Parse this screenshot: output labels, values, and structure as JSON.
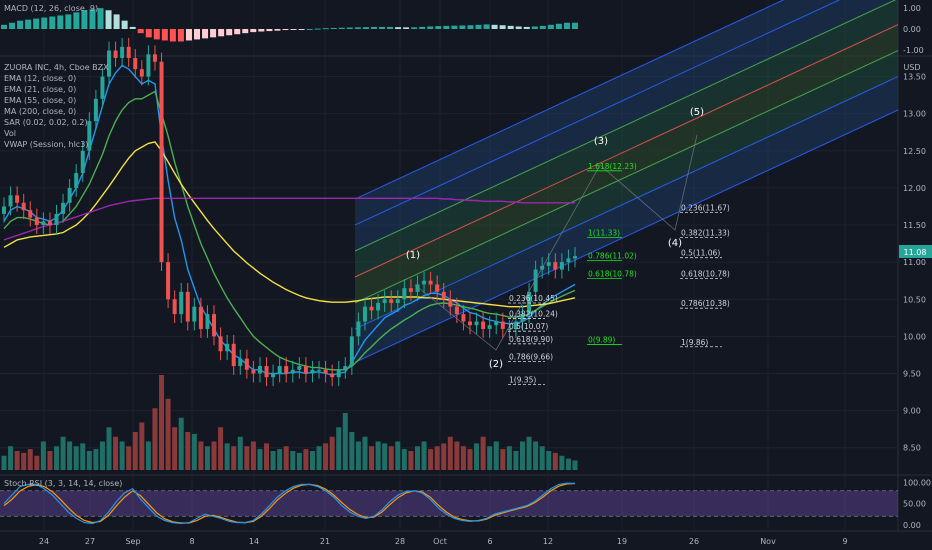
{
  "panels": {
    "macd_label": "MACD (12, 26, close, 9)",
    "stoch_label": "Stoch RSI (3, 3, 14, 14, close)",
    "macd_ticks": [
      "1.00",
      "0.00",
      "-1.00"
    ],
    "stoch_ticks": [
      "100.00",
      "50.00",
      "0.00"
    ]
  },
  "legend": [
    "ZUORA INC, 4h, Cboe BZX",
    "EMA (12, close, 0)",
    "EMA (21, close, 0)",
    "EMA (55, close, 0)",
    "MA (200, close, 0)",
    "SAR (0.02, 0.02, 0.2)",
    "Vol",
    "VWAP (Session, hlc3)"
  ],
  "currency": "USD",
  "price_badge": "11.08",
  "colors": {
    "background": "#131722",
    "up": "#26a69a",
    "down": "#ef5350",
    "ema12": "#2196f3",
    "ema21": "#4caf50",
    "ema55": "#f3e045",
    "ma200": "#9c27b0",
    "fib_green": "#22e022",
    "channel_blue": "#2962ff",
    "stoch_k": "#2196f3",
    "stoch_d": "#ff9800",
    "stoch_band": "#7e57c2"
  },
  "chart_data": {
    "type": "candlestick",
    "title": "ZUORA INC, 4h, Cboe BZX",
    "xlabel": "",
    "ylabel": "USD",
    "x_ticks": [
      "24",
      "27",
      "Sep",
      "8",
      "14",
      "21",
      "28",
      "Oct",
      "6",
      "12",
      "19",
      "26",
      "Nov",
      "9"
    ],
    "y_ticks": [
      8.5,
      9.0,
      9.5,
      10.0,
      10.5,
      11.0,
      11.5,
      12.0,
      12.5,
      13.0,
      13.5
    ],
    "ylim": [
      8.2,
      13.75
    ],
    "last_price": 11.08,
    "close_series": [
      11.75,
      11.9,
      11.8,
      11.7,
      11.6,
      11.5,
      11.55,
      11.5,
      11.65,
      11.8,
      12.0,
      12.2,
      12.5,
      12.9,
      13.2,
      13.5,
      13.85,
      13.75,
      13.9,
      13.75,
      13.6,
      13.5,
      13.8,
      13.7,
      11.0,
      10.5,
      10.3,
      10.6,
      10.2,
      10.4,
      10.1,
      10.3,
      10.0,
      9.8,
      9.9,
      9.6,
      9.7,
      9.55,
      9.5,
      9.6,
      9.45,
      9.5,
      9.6,
      9.5,
      9.55,
      9.6,
      9.5,
      9.55,
      9.55,
      9.5,
      9.45,
      9.55,
      9.6,
      10.0,
      10.2,
      10.4,
      10.35,
      10.45,
      10.5,
      10.45,
      10.5,
      10.65,
      10.6,
      10.7,
      10.75,
      10.7,
      10.6,
      10.5,
      10.4,
      10.3,
      10.2,
      10.15,
      10.2,
      10.1,
      10.15,
      10.2,
      10.1,
      10.1,
      10.2,
      10.3,
      10.6,
      10.9,
      10.95,
      11.0,
      10.9,
      11.0,
      11.05,
      11.08
    ],
    "series": [
      {
        "name": "EMA (12, close, 0)",
        "values": [
          11.55,
          11.7,
          11.75,
          11.72,
          11.68,
          11.6,
          11.58,
          11.55,
          11.6,
          11.7,
          11.85,
          12.0,
          12.2,
          12.5,
          12.8,
          13.1,
          13.4,
          13.55,
          13.65,
          13.6,
          13.5,
          13.4,
          13.45,
          13.4,
          12.7,
          12.1,
          11.6,
          11.3,
          10.9,
          10.65,
          10.4,
          10.25,
          10.1,
          9.95,
          9.85,
          9.75,
          9.7,
          9.62,
          9.55,
          9.55,
          9.5,
          9.5,
          9.5,
          9.5,
          9.52,
          9.52,
          9.5,
          9.52,
          9.52,
          9.5,
          9.48,
          9.5,
          9.52,
          9.65,
          9.8,
          9.95,
          10.05,
          10.15,
          10.25,
          10.3,
          10.35,
          10.42,
          10.45,
          10.5,
          10.55,
          10.58,
          10.58,
          10.55,
          10.5,
          10.45,
          10.38,
          10.32,
          10.3,
          10.25,
          10.22,
          10.2,
          10.18,
          10.17,
          10.18,
          10.2,
          10.25,
          10.35,
          10.42,
          10.5,
          10.55,
          10.6,
          10.65,
          10.7
        ]
      },
      {
        "name": "EMA (21, close, 0)",
        "values": [
          11.45,
          11.55,
          11.6,
          11.6,
          11.58,
          11.55,
          11.52,
          11.5,
          11.52,
          11.55,
          11.65,
          11.75,
          11.9,
          12.05,
          12.25,
          12.45,
          12.7,
          12.9,
          13.05,
          13.15,
          13.2,
          13.2,
          13.25,
          13.3,
          13.0,
          12.7,
          12.35,
          12.05,
          11.75,
          11.5,
          11.25,
          11.05,
          10.85,
          10.68,
          10.52,
          10.38,
          10.25,
          10.12,
          10.0,
          9.92,
          9.85,
          9.78,
          9.72,
          9.68,
          9.65,
          9.62,
          9.6,
          9.58,
          9.58,
          9.56,
          9.55,
          9.55,
          9.55,
          9.6,
          9.68,
          9.78,
          9.86,
          9.95,
          10.03,
          10.1,
          10.16,
          10.22,
          10.27,
          10.33,
          10.38,
          10.42,
          10.44,
          10.45,
          10.44,
          10.42,
          10.4,
          10.38,
          10.36,
          10.33,
          10.31,
          10.3,
          10.28,
          10.26,
          10.26,
          10.27,
          10.3,
          10.35,
          10.4,
          10.45,
          10.5,
          10.54,
          10.58,
          10.62
        ]
      },
      {
        "name": "EMA (55, close, 0)",
        "values": [
          11.2,
          11.25,
          11.3,
          11.32,
          11.34,
          11.35,
          11.36,
          11.37,
          11.38,
          11.4,
          11.45,
          11.5,
          11.58,
          11.67,
          11.78,
          11.9,
          12.02,
          12.15,
          12.28,
          12.4,
          12.5,
          12.55,
          12.6,
          12.62,
          12.5,
          12.35,
          12.2,
          12.05,
          11.92,
          11.8,
          11.68,
          11.56,
          11.45,
          11.35,
          11.25,
          11.15,
          11.07,
          10.99,
          10.92,
          10.85,
          10.79,
          10.73,
          10.68,
          10.63,
          10.59,
          10.55,
          10.52,
          10.5,
          10.48,
          10.47,
          10.46,
          10.46,
          10.46,
          10.47,
          10.48,
          10.5,
          10.51,
          10.52,
          10.53,
          10.53,
          10.53,
          10.53,
          10.53,
          10.53,
          10.52,
          10.52,
          10.51,
          10.5,
          10.49,
          10.48,
          10.47,
          10.46,
          10.45,
          10.44,
          10.43,
          10.42,
          10.41,
          10.4,
          10.4,
          10.4,
          10.41,
          10.42,
          10.43,
          10.44,
          10.46,
          10.48,
          10.5,
          10.52
        ]
      },
      {
        "name": "MA (200, close, 0)",
        "values": [
          11.3,
          11.33,
          11.36,
          11.39,
          11.42,
          11.45,
          11.48,
          11.5,
          11.52,
          11.55,
          11.58,
          11.61,
          11.64,
          11.67,
          11.7,
          11.73,
          11.76,
          11.78,
          11.8,
          11.82,
          11.83,
          11.84,
          11.85,
          11.86,
          11.86,
          11.86,
          11.86,
          11.86,
          11.86,
          11.86,
          11.86,
          11.86,
          11.86,
          11.86,
          11.86,
          11.86,
          11.86,
          11.86,
          11.86,
          11.86,
          11.86,
          11.86,
          11.86,
          11.86,
          11.86,
          11.86,
          11.86,
          11.86,
          11.86,
          11.86,
          11.86,
          11.86,
          11.86,
          11.86,
          11.86,
          11.86,
          11.86,
          11.86,
          11.86,
          11.86,
          11.86,
          11.86,
          11.86,
          11.86,
          11.86,
          11.86,
          11.86,
          11.85,
          11.85,
          11.84,
          11.84,
          11.83,
          11.83,
          11.82,
          11.82,
          11.82,
          11.82,
          11.81,
          11.81,
          11.8,
          11.8,
          11.8,
          11.8,
          11.8,
          11.8,
          11.8,
          11.8,
          11.8
        ]
      }
    ],
    "fib_levels_left": [
      {
        "label": "1.618(12.23)",
        "value": 12.23
      },
      {
        "label": "1(11.33)",
        "value": 11.33
      },
      {
        "label": "0.786(11.02)",
        "value": 11.02
      },
      {
        "label": "0.618(10.78)",
        "value": 10.78
      },
      {
        "label": "0(9.89)",
        "value": 9.89
      }
    ],
    "fib_levels_retrace": [
      {
        "label": "0.236(10.45)",
        "value": 10.45
      },
      {
        "label": "0.382(10.24)",
        "value": 10.24
      },
      {
        "label": "0.5(10.07)",
        "value": 10.07
      },
      {
        "label": "0.618(9.90)",
        "value": 9.9
      },
      {
        "label": "0.786(9.66)",
        "value": 9.66
      },
      {
        "label": "1(9.35)",
        "value": 9.35
      }
    ],
    "fib_levels_right": [
      {
        "label": "0.236(11.67)",
        "value": 11.67
      },
      {
        "label": "0.382(11.33)",
        "value": 11.33
      },
      {
        "label": "0.5(11.06)",
        "value": 11.06
      },
      {
        "label": "0.618(10.78)",
        "value": 10.78
      },
      {
        "label": "0.786(10.38)",
        "value": 10.38
      },
      {
        "label": "1(9.86)",
        "value": 9.86
      }
    ],
    "wave_labels": [
      "(1)",
      "(2)",
      "(3)",
      "(4)",
      "(5)"
    ],
    "stoch_rsi": {
      "ylim": [
        -10,
        110
      ],
      "upper": 80,
      "lower": 20,
      "k": [
        50,
        70,
        90,
        95,
        95,
        85,
        70,
        50,
        30,
        15,
        5,
        3,
        10,
        30,
        55,
        75,
        85,
        60,
        40,
        20,
        10,
        5,
        3,
        5,
        15,
        25,
        20,
        15,
        8,
        5,
        5,
        10,
        25,
        45,
        65,
        80,
        90,
        95,
        95,
        90,
        80,
        65,
        45,
        30,
        20,
        15,
        20,
        35,
        55,
        70,
        78,
        80,
        75,
        60,
        40,
        25,
        15,
        10,
        8,
        10,
        15,
        25,
        30,
        35,
        40,
        45,
        55,
        70,
        85,
        95,
        98,
        97
      ],
      "d": [
        45,
        60,
        80,
        90,
        95,
        90,
        78,
        60,
        40,
        22,
        10,
        5,
        8,
        22,
        45,
        65,
        80,
        68,
        48,
        28,
        14,
        7,
        4,
        4,
        10,
        20,
        22,
        17,
        11,
        6,
        5,
        8,
        20,
        38,
        58,
        74,
        86,
        93,
        95,
        92,
        84,
        70,
        52,
        36,
        24,
        17,
        18,
        30,
        48,
        64,
        75,
        80,
        77,
        65,
        46,
        30,
        18,
        12,
        9,
        9,
        13,
        22,
        28,
        33,
        38,
        43,
        52,
        65,
        80,
        91,
        96,
        97
      ]
    },
    "volume": [
      0.15,
      0.25,
      0.2,
      0.18,
      0.22,
      0.15,
      0.3,
      0.2,
      0.25,
      0.35,
      0.3,
      0.25,
      0.28,
      0.2,
      0.22,
      0.3,
      0.45,
      0.35,
      0.3,
      0.25,
      0.4,
      0.5,
      0.3,
      0.65,
      1.0,
      0.75,
      0.45,
      0.55,
      0.4,
      0.38,
      0.3,
      0.25,
      0.3,
      0.45,
      0.28,
      0.25,
      0.35,
      0.25,
      0.3,
      0.22,
      0.28,
      0.2,
      0.22,
      0.25,
      0.2,
      0.18,
      0.22,
      0.2,
      0.25,
      0.28,
      0.35,
      0.45,
      0.6,
      0.4,
      0.3,
      0.35,
      0.25,
      0.3,
      0.28,
      0.25,
      0.3,
      0.22,
      0.2,
      0.25,
      0.3,
      0.22,
      0.25,
      0.28,
      0.35,
      0.3,
      0.25,
      0.22,
      0.28,
      0.35,
      0.25,
      0.3,
      0.22,
      0.25,
      0.2,
      0.3,
      0.35,
      0.3,
      0.25,
      0.2,
      0.18,
      0.15,
      0.12,
      0.1
    ],
    "macd_hist": [
      0.2,
      0.3,
      0.4,
      0.45,
      0.5,
      0.55,
      0.6,
      0.65,
      0.7,
      0.8,
      0.9,
      0.95,
      1.0,
      0.9,
      0.7,
      0.4,
      0.1,
      -0.2,
      -0.4,
      -0.5,
      -0.55,
      -0.6,
      -0.6,
      -0.55,
      -0.5,
      -0.45,
      -0.4,
      -0.35,
      -0.3,
      -0.25,
      -0.2,
      -0.15,
      -0.12,
      -0.1,
      -0.08,
      -0.05,
      -0.03,
      -0.02,
      0.0,
      0.02,
      0.04,
      0.05,
      0.06,
      0.07,
      0.08,
      0.09,
      0.1,
      0.1,
      0.1,
      0.09,
      0.08,
      0.08,
      0.1,
      0.12,
      0.14,
      0.15,
      0.16,
      0.17,
      0.18,
      0.2,
      0.22,
      0.2,
      0.18,
      0.15,
      0.12,
      0.1,
      0.12,
      0.15,
      0.2,
      0.25,
      0.3,
      0.3
    ],
    "macd_ylim": [
      -1.2,
      1.2
    ]
  }
}
